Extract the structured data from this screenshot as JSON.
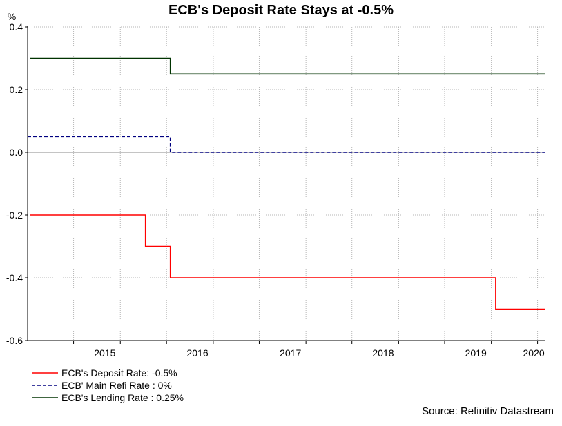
{
  "chart_data": {
    "type": "line",
    "title": "ECB's Deposit Rate Stays at -0.5%",
    "ylabel": "%",
    "ylim": [
      -0.6,
      0.4
    ],
    "yticks": [
      {
        "value": 0.4,
        "label": "0.4"
      },
      {
        "value": 0.2,
        "label": "0.2"
      },
      {
        "value": 0.0,
        "label": "0.0"
      },
      {
        "value": -0.2,
        "label": "-0.2"
      },
      {
        "value": -0.4,
        "label": "-0.4"
      },
      {
        "value": -0.6,
        "label": "-0.6"
      }
    ],
    "xlim": [
      "2014-09-01",
      "2020-04-01"
    ],
    "xgrid_dates": [
      "2015-03-01",
      "2015-09-01",
      "2016-03-01",
      "2016-09-01",
      "2017-03-01",
      "2017-09-01",
      "2018-03-01",
      "2018-09-01",
      "2019-03-01",
      "2019-09-01",
      "2020-03-01"
    ],
    "year_labels": [
      "2015",
      "2016",
      "2017",
      "2018",
      "2019",
      "2020"
    ],
    "grid": true,
    "series": [
      {
        "name": "ECB's Deposit Rate: -0.5%",
        "color": "#ff0000",
        "style": "solid",
        "points": [
          [
            "2014-09-10",
            -0.2
          ],
          [
            "2015-12-09",
            -0.2
          ],
          [
            "2015-12-09",
            -0.3
          ],
          [
            "2016-03-16",
            -0.3
          ],
          [
            "2016-03-16",
            -0.4
          ],
          [
            "2019-09-18",
            -0.4
          ],
          [
            "2019-09-18",
            -0.5
          ],
          [
            "2020-03-31",
            -0.5
          ]
        ]
      },
      {
        "name": "ECB' Main Refi Rate : 0%",
        "color": "#000080",
        "style": "dashed",
        "points": [
          [
            "2014-09-01",
            0.05
          ],
          [
            "2016-03-16",
            0.05
          ],
          [
            "2016-03-16",
            0.0
          ],
          [
            "2020-03-31",
            0.0
          ]
        ]
      },
      {
        "name": "ECB's Lending Rate : 0.25%",
        "color": "#003300",
        "style": "solid",
        "points": [
          [
            "2014-09-10",
            0.3
          ],
          [
            "2016-03-16",
            0.3
          ],
          [
            "2016-03-16",
            0.25
          ],
          [
            "2020-03-31",
            0.25
          ]
        ]
      }
    ],
    "legend_position": "bottom-left",
    "source": "Source: Refinitiv Datastream"
  }
}
